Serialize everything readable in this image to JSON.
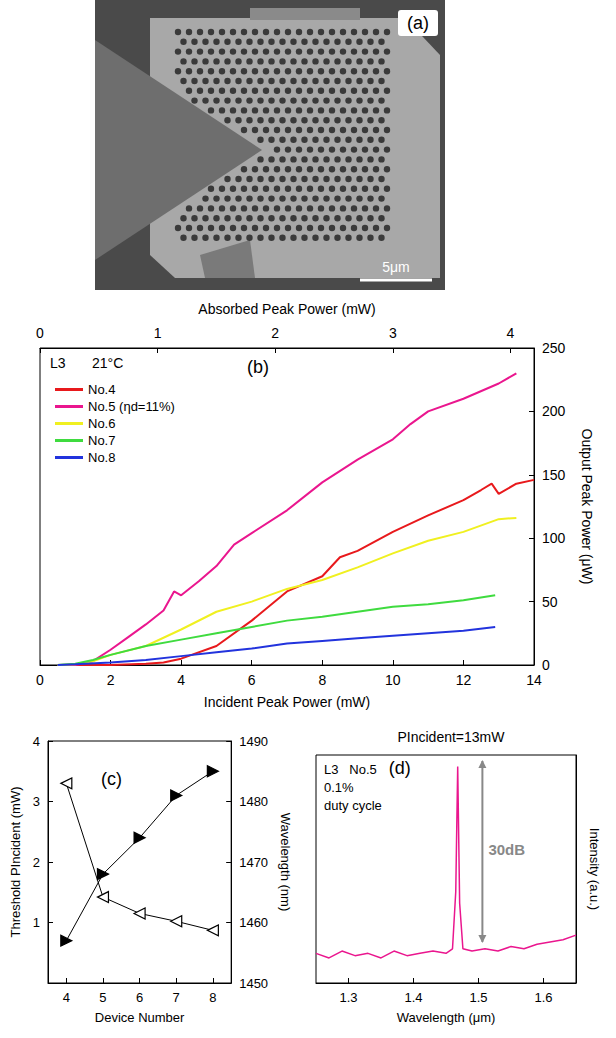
{
  "image_panel": {
    "label": "(a)",
    "scale_bar": "5μm"
  },
  "chart_data": [
    {
      "type": "line",
      "label": "(b)",
      "annotations": [
        "L3",
        "21°C"
      ],
      "xlabel": "Incident Peak Power (mW)",
      "xlim": [
        0,
        14
      ],
      "xticks": [
        0,
        2,
        4,
        6,
        8,
        10,
        12,
        14
      ],
      "x2label": "Absorbed Peak Power (mW)",
      "x2lim": [
        0,
        4.2
      ],
      "x2ticks": [
        0,
        1,
        2,
        3,
        4
      ],
      "ylabel": "Output Peak Power (μW)",
      "ylim": [
        0,
        250
      ],
      "yticks": [
        0,
        50,
        100,
        150,
        200,
        250
      ],
      "legend": "upper left",
      "grid": false,
      "series": [
        {
          "name": "No.4",
          "color": "#e8191c",
          "x": [
            0.5,
            2,
            3,
            3.5,
            4,
            5,
            6,
            7,
            8,
            8.5,
            9,
            10,
            11,
            12,
            12.5,
            12.8,
            13,
            13.5,
            14
          ],
          "values": [
            0,
            0,
            1,
            2,
            5,
            15,
            35,
            58,
            70,
            85,
            90,
            105,
            118,
            130,
            138,
            143,
            135,
            143,
            146
          ]
        },
        {
          "name": "No.5 (ηd=11%)",
          "color": "#ea168e",
          "x": [
            0.5,
            1,
            1.5,
            2,
            2.5,
            3,
            3.5,
            3.8,
            4,
            4.5,
            5,
            5.5,
            6,
            7,
            8,
            9,
            10,
            10.5,
            11,
            12,
            13,
            13.5
          ],
          "values": [
            0,
            0,
            3,
            12,
            22,
            32,
            43,
            58,
            55,
            66,
            78,
            95,
            104,
            122,
            144,
            162,
            178,
            190,
            200,
            210,
            222,
            230
          ]
        },
        {
          "name": "No.6",
          "color": "#f0f020",
          "x": [
            0.5,
            1,
            1.5,
            2,
            3,
            4,
            5,
            6,
            7,
            8,
            9,
            10,
            11,
            12,
            13,
            13.5
          ],
          "values": [
            0,
            0.5,
            3,
            8,
            15,
            28,
            42,
            50,
            60,
            67,
            77,
            88,
            98,
            105,
            115,
            116
          ]
        },
        {
          "name": "No.7",
          "color": "#3fdb3f",
          "x": [
            0.5,
            1,
            1.5,
            2,
            3,
            4,
            5,
            6,
            7,
            8,
            9,
            10,
            11,
            12,
            12.9
          ],
          "values": [
            0,
            1,
            4,
            8,
            15,
            20,
            25,
            30,
            35,
            38,
            42,
            46,
            48,
            51,
            55
          ]
        },
        {
          "name": "No.8",
          "color": "#2233dd",
          "x": [
            0.5,
            1,
            2,
            3,
            4,
            5,
            6,
            7,
            8,
            9,
            10,
            11,
            12,
            12.9
          ],
          "values": [
            0,
            0.5,
            2,
            4,
            7,
            10,
            13,
            17,
            19,
            21,
            23,
            25,
            27,
            30
          ]
        }
      ]
    },
    {
      "type": "line",
      "label": "(c)",
      "grid": false,
      "xlabel": "Device Number",
      "xlim": [
        3.5,
        8.5
      ],
      "xticks": [
        4,
        5,
        6,
        7,
        8
      ],
      "ylabel": "Threshold PIncident (mW)",
      "ylim": [
        0,
        4
      ],
      "yticks": [
        1,
        2,
        3,
        4
      ],
      "y2label": "Wavelength (nm)",
      "y2lim": [
        1450,
        1490
      ],
      "y2ticks": [
        1450,
        1460,
        1470,
        1480,
        1490
      ],
      "x": [
        4,
        5,
        6,
        7,
        8
      ],
      "series": [
        {
          "color": "#000000",
          "marker": "triangle-left-open",
          "values": [
            3.3,
            1.42,
            1.15,
            1.02,
            0.87
          ]
        },
        {
          "color": "#000000",
          "marker": "triangle-right",
          "axis": "y2",
          "values": [
            1457,
            1468,
            1474,
            1481,
            1485
          ]
        }
      ]
    },
    {
      "type": "line",
      "label": "(d)",
      "title": "PIncident=13mW",
      "grid": false,
      "annotations": [
        "L3   No.5",
        "0.1%",
        "duty cycle",
        "30dB"
      ],
      "xlabel": "Wavelength (μm)",
      "xlim": [
        1.25,
        1.65
      ],
      "xticks": [
        1.3,
        1.4,
        1.5,
        1.6
      ],
      "ylabel": "Intensity (a.u.)",
      "ylim": [
        0,
        100
      ],
      "tick_labels": "x",
      "series": [
        {
          "color": "#ea168e",
          "x": [
            1.25,
            1.27,
            1.29,
            1.31,
            1.33,
            1.35,
            1.37,
            1.39,
            1.41,
            1.43,
            1.45,
            1.46,
            1.465,
            1.468,
            1.471,
            1.476,
            1.49,
            1.51,
            1.53,
            1.55,
            1.57,
            1.59,
            1.61,
            1.63,
            1.65
          ],
          "values": [
            13,
            11,
            14,
            12,
            13,
            11,
            14,
            12,
            13,
            14,
            13,
            15,
            40,
            95,
            35,
            15,
            14,
            15,
            14,
            16,
            15,
            17,
            18,
            19,
            21
          ]
        }
      ]
    }
  ]
}
